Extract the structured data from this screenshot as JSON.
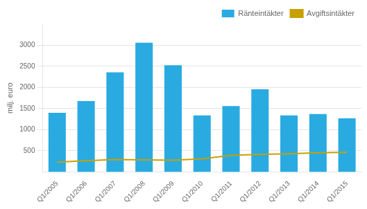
{
  "chart_data": {
    "type": "bar",
    "y_label": "milj. euro",
    "categories": [
      "Q1/2005",
      "Q1/2006",
      "Q1/2007",
      "Q1/2008",
      "Q1/2009",
      "Q1/2010",
      "Q1/2011",
      "Q1/2012",
      "Q1/2013",
      "Q1/2014",
      "Q1/2015"
    ],
    "series": [
      {
        "name": "Ränteintäkter",
        "type": "bar",
        "color": "#29ABE2",
        "values": [
          1400,
          1680,
          2360,
          3060,
          2530,
          1340,
          1560,
          1960,
          1340,
          1370,
          1270
        ]
      },
      {
        "name": "Avgiftsintäkter",
        "type": "line",
        "color": "#C8A000",
        "values": [
          230,
          265,
          295,
          285,
          275,
          310,
          390,
          415,
          430,
          455,
          465
        ]
      }
    ],
    "ylim": [
      0,
      3500
    ],
    "yticks": [
      500,
      1000,
      1500,
      2000,
      2500,
      3000
    ],
    "grid": "y",
    "legend": "upper right"
  }
}
